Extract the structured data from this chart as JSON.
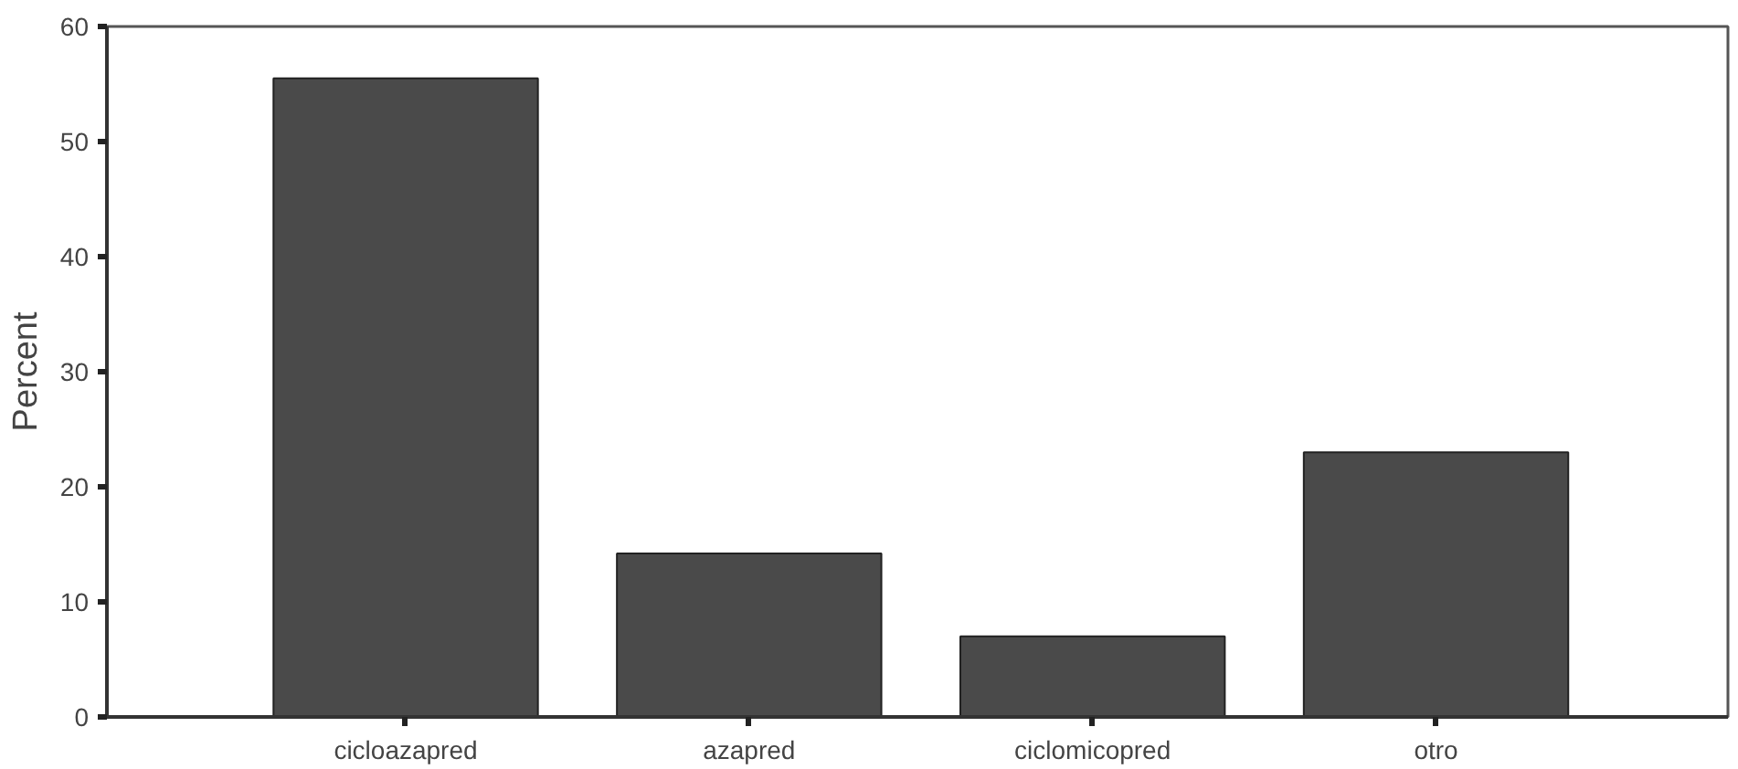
{
  "chart_data": {
    "type": "bar",
    "ylabel": "Percent",
    "categories": [
      "cicloazapred",
      "azapred",
      "ciclomicopred",
      "otro"
    ],
    "values": [
      55.5,
      14.2,
      7.0,
      23.0
    ],
    "color": "#4a4a4a",
    "ylim": [
      0,
      60
    ],
    "yticks": [
      0,
      10,
      20,
      30,
      40,
      50,
      60
    ],
    "grid": false
  }
}
